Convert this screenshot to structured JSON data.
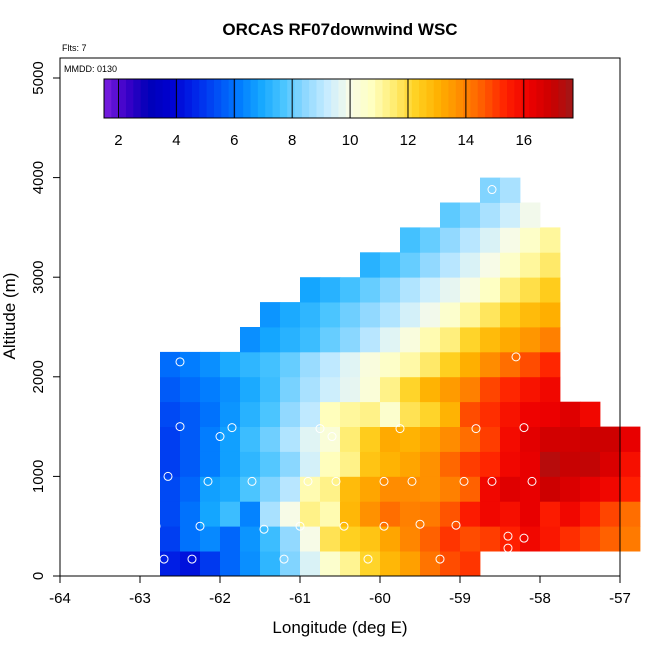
{
  "chart_data": {
    "type": "heatmap",
    "title": "ORCAS RF07downwind WSC",
    "subtitle_left": "Flts: 7",
    "note": "MMDD: 0130",
    "xlabel": "Longitude (deg E)",
    "ylabel": "Altitude (m)",
    "xlim": [
      -64,
      -57
    ],
    "ylim": [
      0,
      5200
    ],
    "x_ticks": [
      "-64",
      "-63",
      "-62",
      "-61",
      "-60",
      "-59",
      "-58",
      "-57"
    ],
    "y_ticks": [
      "0",
      "1000",
      "2000",
      "3000",
      "4000",
      "5000"
    ],
    "colorbar": {
      "min": 1.5,
      "max": 17.7,
      "ticks": [
        "2",
        "4",
        "6",
        "8",
        "10",
        "12",
        "14",
        "16"
      ],
      "colors": [
        "#7b1fe0",
        "#3d00c8",
        "#0000b8",
        "#0000d0",
        "#0022e8",
        "#004cf5",
        "#0079ff",
        "#14a6ff",
        "#48c4ff",
        "#8ed8ff",
        "#c8ecff",
        "#f7fbe8",
        "#ffffc0",
        "#ffec70",
        "#ffd020",
        "#ffb000",
        "#ff8a00",
        "#ff5a00",
        "#ff2000",
        "#ee0000",
        "#cc0000",
        "#a01818"
      ]
    },
    "cell": {
      "dx": 0.25,
      "dy": 250
    },
    "rows": [
      {
        "y": 0,
        "x0": -62.75,
        "values": [
          4.5,
          4.2,
          5.0,
          5.8,
          6.5,
          7.3,
          8.3,
          9.5,
          10.5,
          11.2,
          12.2,
          12.9,
          13.4,
          14.2,
          14.8,
          15.1
        ]
      },
      {
        "y": 250,
        "x0": -62.75,
        "values": [
          5.1,
          6.0,
          6.4,
          5.8,
          6.6,
          7.5,
          8.5,
          10.0,
          11.8,
          12.3,
          12.6,
          13.3,
          13.9,
          14.5,
          15.1,
          14.8,
          15.0,
          15.4,
          16.0,
          15.6,
          15.2,
          14.9,
          14.5,
          14.1
        ]
      },
      {
        "y": 500,
        "x0": -62.75,
        "values": [
          5.3,
          6.0,
          6.9,
          7.5,
          6.3,
          8.8,
          10.0,
          11.3,
          10.9,
          12.9,
          13.7,
          14.3,
          14.0,
          14.1,
          14.7,
          15.5,
          16.0,
          15.8,
          16.3,
          15.5,
          16.0,
          15.5,
          14.9,
          14.3
        ]
      },
      {
        "y": 750,
        "x0": -62.75,
        "values": [
          5.3,
          5.8,
          6.8,
          7.0,
          7.7,
          8.3,
          9.0,
          10.9,
          11.3,
          12.8,
          13.3,
          13.8,
          13.8,
          13.7,
          14.0,
          14.5,
          16.0,
          16.5,
          16.3,
          16.9,
          16.6,
          16.3,
          16.0,
          15.4
        ]
      },
      {
        "y": 1000,
        "x0": -62.75,
        "values": [
          5.1,
          5.6,
          6.2,
          6.8,
          7.3,
          7.8,
          8.4,
          9.4,
          10.8,
          11.3,
          12.6,
          13.0,
          13.3,
          13.7,
          14.4,
          15.0,
          15.3,
          16.0,
          16.3,
          17.3,
          17.0,
          17.1,
          16.6,
          15.8
        ]
      },
      {
        "y": 1250,
        "x0": -62.75,
        "values": [
          5.1,
          5.6,
          6.2,
          6.8,
          7.5,
          8.1,
          8.9,
          9.6,
          10.3,
          11.5,
          12.4,
          13.2,
          13.0,
          13.3,
          13.8,
          14.3,
          15.0,
          15.9,
          16.4,
          16.8,
          16.8,
          16.9,
          16.9,
          16.3
        ]
      },
      {
        "y": 1500,
        "x0": -62.75,
        "values": [
          5.3,
          5.6,
          6.0,
          6.6,
          7.2,
          7.7,
          8.5,
          9.1,
          10.8,
          11.1,
          11.3,
          10.5,
          11.8,
          12.2,
          13.0,
          14.8,
          15.2,
          15.7,
          16.1,
          16.2,
          16.5,
          16.0
        ]
      },
      {
        "y": 1750,
        "x0": -62.75,
        "values": [
          5.6,
          5.9,
          6.2,
          6.5,
          7.0,
          7.5,
          8.2,
          8.8,
          9.3,
          9.7,
          10.3,
          11.3,
          12.2,
          13.0,
          13.5,
          14.0,
          14.9,
          15.3,
          15.7,
          16.0
        ]
      },
      {
        "y": 2000,
        "x0": -62.75,
        "values": [
          5.9,
          6.2,
          6.5,
          7.0,
          7.3,
          7.6,
          8.0,
          8.6,
          9.1,
          9.6,
          10.2,
          10.6,
          11.0,
          11.6,
          12.3,
          13.1,
          13.8,
          14.3,
          14.8,
          15.3
        ]
      },
      {
        "y": 2250,
        "x0": -61.75,
        "values": [
          6.5,
          6.9,
          7.2,
          7.5,
          8.0,
          8.4,
          9.0,
          9.6,
          10.2,
          10.9,
          11.4,
          12.2,
          12.8,
          13.2,
          13.6,
          14.0
        ]
      },
      {
        "y": 2500,
        "x0": -61.5,
        "values": [
          6.6,
          7.0,
          7.3,
          7.7,
          8.1,
          8.5,
          8.9,
          9.4,
          9.9,
          10.5,
          11.1,
          11.7,
          12.3,
          12.8,
          13.1
        ]
      },
      {
        "y": 2750,
        "x0": -61.0,
        "values": [
          6.9,
          7.2,
          7.6,
          8.0,
          8.4,
          8.9,
          9.3,
          9.7,
          10.1,
          10.7,
          11.4,
          11.9,
          12.4
        ]
      },
      {
        "y": 3000,
        "x0": -60.25,
        "values": [
          7.2,
          7.6,
          8.0,
          8.5,
          9.0,
          9.5,
          10.0,
          10.6,
          11.1,
          11.6
        ]
      },
      {
        "y": 3250,
        "x0": -59.75,
        "values": [
          7.6,
          8.0,
          8.5,
          9.0,
          9.5,
          10.0,
          10.6,
          11.1
        ]
      },
      {
        "y": 3500,
        "x0": -59.25,
        "values": [
          7.9,
          8.3,
          8.8,
          9.3,
          9.9
        ]
      },
      {
        "y": 3750,
        "x0": -58.75,
        "values": [
          8.3,
          8.8
        ]
      }
    ],
    "points": [
      [
        -62.7,
        170
      ],
      [
        -62.35,
        170
      ],
      [
        -62.8,
        500
      ],
      [
        -62.25,
        500
      ],
      [
        -62.65,
        1000
      ],
      [
        -62.15,
        950
      ],
      [
        -62.5,
        1500
      ],
      [
        -62.0,
        1400
      ],
      [
        -61.85,
        1490
      ],
      [
        -62.5,
        2150
      ],
      [
        -61.6,
        950
      ],
      [
        -61.45,
        470
      ],
      [
        -61.2,
        170
      ],
      [
        -60.9,
        950
      ],
      [
        -61.0,
        500
      ],
      [
        -60.75,
        1480
      ],
      [
        -60.6,
        1400
      ],
      [
        -60.55,
        950
      ],
      [
        -60.45,
        500
      ],
      [
        -60.15,
        170
      ],
      [
        -59.95,
        500
      ],
      [
        -59.95,
        950
      ],
      [
        -59.75,
        1480
      ],
      [
        -59.6,
        950
      ],
      [
        -59.5,
        520
      ],
      [
        -59.25,
        170
      ],
      [
        -59.05,
        510
      ],
      [
        -58.95,
        950
      ],
      [
        -58.8,
        1480
      ],
      [
        -58.6,
        950
      ],
      [
        -58.4,
        400
      ],
      [
        -58.4,
        280
      ],
      [
        -58.3,
        2200
      ],
      [
        -58.2,
        1490
      ],
      [
        -58.2,
        380
      ],
      [
        -58.1,
        950
      ],
      [
        -58.6,
        3880
      ]
    ]
  }
}
